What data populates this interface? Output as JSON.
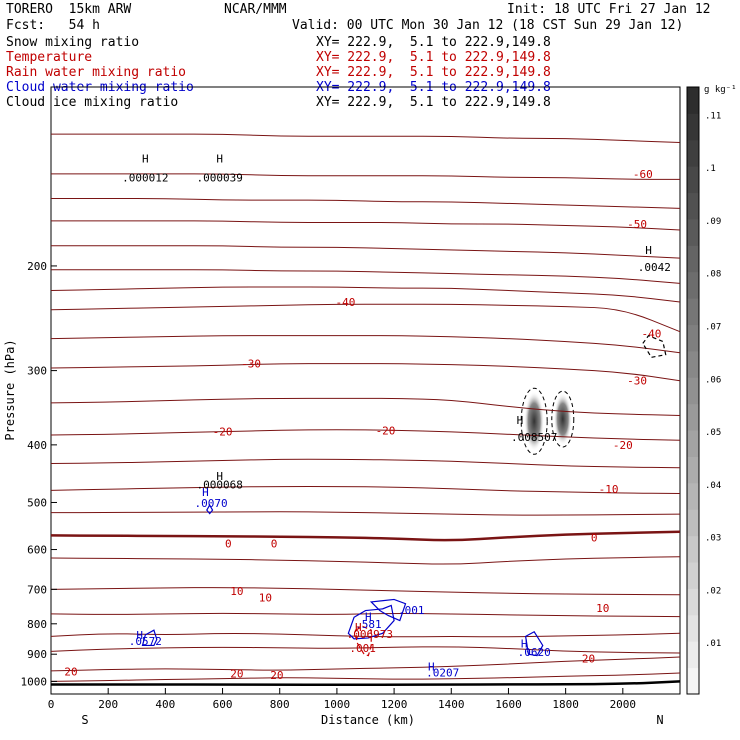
{
  "header": {
    "model": "TORERO  15km ARW",
    "org": "NCAR/MMM",
    "init": "Init: 18 UTC Fri 27 Jan 12",
    "fcst": "Fcst:   54 h",
    "valid": "Valid: 00 UTC Mon 30 Jan 12 (18 CST Sun 29 Jan 12)",
    "fields": [
      {
        "name": "Snow mixing ratio",
        "xy": "XY= 222.9,  5.1 to 222.9,149.8",
        "color": "#000000"
      },
      {
        "name": "Temperature",
        "xy": "XY= 222.9,  5.1 to 222.9,149.8",
        "color": "#c00000"
      },
      {
        "name": "Rain water mixing ratio",
        "xy": "XY= 222.9,  5.1 to 222.9,149.8",
        "color": "#c00000"
      },
      {
        "name": "Cloud water mixing ratio",
        "xy": "XY= 222.9,  5.1 to 222.9,149.8",
        "color": "#0000cc"
      },
      {
        "name": "Cloud ice mixing ratio",
        "xy": "XY= 222.9,  5.1 to 222.9,149.8",
        "color": "#000000"
      }
    ]
  },
  "chart_data": {
    "type": "contour",
    "xlabel": "Distance (km)",
    "ylabel": "Pressure (hPa)",
    "x_ticks": [
      "0",
      "200",
      "400",
      "600",
      "800",
      "1000",
      "1200",
      "1400",
      "1600",
      "1800",
      "2000"
    ],
    "y_ticks": [
      "200",
      "300",
      "400",
      "500",
      "600",
      "700",
      "800",
      "900",
      "1000"
    ],
    "xlim": [
      0,
      2200
    ],
    "ylim": [
      1050,
      100
    ],
    "y_scale": "log",
    "end_labels": {
      "left": "S",
      "right": "N"
    },
    "colorbar": {
      "unit": "g kg⁻¹",
      "ticks": [
        ".01",
        ".02",
        ".03",
        ".04",
        ".05",
        ".06",
        ".07",
        ".08",
        ".09",
        ".1",
        ".11"
      ]
    },
    "temperature_contours": [
      {
        "label": "-60",
        "p": [
          140,
          140,
          140,
          140,
          141,
          141,
          141,
          141,
          142,
          142,
          143,
          143
        ]
      },
      {
        "label": "-50",
        "p": [
          168,
          168,
          168,
          168,
          169,
          169,
          169,
          170,
          170,
          171,
          172,
          174
        ]
      },
      {
        "label": "-40",
        "p": [
          237,
          236,
          235,
          234,
          233,
          232,
          232,
          232,
          233,
          234,
          236,
          258
        ]
      },
      {
        "label": "-30",
        "p": [
          297,
          296,
          295,
          294,
          292,
          292,
          292,
          293,
          295,
          298,
          302,
          312
        ]
      },
      {
        "label": "-20",
        "p": [
          385,
          384,
          382,
          380,
          378,
          377,
          378,
          380,
          384,
          388,
          391,
          393
        ]
      },
      {
        "label": "-10",
        "p": [
          477,
          475,
          473,
          471,
          470,
          470,
          471,
          474,
          478,
          480,
          482,
          483
        ]
      },
      {
        "label": "0",
        "p": [
          568,
          569,
          569,
          570,
          571,
          572,
          575,
          580,
          572,
          566,
          563,
          560
        ]
      },
      {
        "label": "10",
        "p": [
          700,
          698,
          696,
          695,
          697,
          700,
          704,
          708,
          711,
          713,
          714,
          715
        ]
      },
      {
        "label": "20",
        "p": [
          960,
          955,
          952,
          955,
          958,
          953,
          949,
          944,
          935,
          925,
          918,
          910
        ]
      }
    ],
    "contour_x": [
      0,
      200,
      400,
      600,
      800,
      1000,
      1200,
      1400,
      1600,
      1800,
      2000,
      2200
    ],
    "labels": [
      {
        "text": "-60",
        "x": 2070,
        "p": 140,
        "color": "red"
      },
      {
        "text": "-50",
        "x": 2050,
        "p": 170,
        "color": "red"
      },
      {
        "text": "-40",
        "x": 1030,
        "p": 230,
        "color": "red"
      },
      {
        "text": "-40",
        "x": 2100,
        "p": 260,
        "color": "red"
      },
      {
        "text": "-30",
        "x": 700,
        "p": 292,
        "color": "red"
      },
      {
        "text": "-30",
        "x": 2050,
        "p": 312,
        "color": "red"
      },
      {
        "text": "-20",
        "x": 600,
        "p": 380,
        "color": "red"
      },
      {
        "text": "-20",
        "x": 1170,
        "p": 378,
        "color": "red"
      },
      {
        "text": "-20",
        "x": 2000,
        "p": 400,
        "color": "red"
      },
      {
        "text": "-10",
        "x": 1950,
        "p": 475,
        "color": "red"
      },
      {
        "text": "0",
        "x": 620,
        "p": 586,
        "color": "red"
      },
      {
        "text": "0",
        "x": 780,
        "p": 586,
        "color": "red"
      },
      {
        "text": "0",
        "x": 1900,
        "p": 573,
        "color": "red"
      },
      {
        "text": "10",
        "x": 650,
        "p": 705,
        "color": "red"
      },
      {
        "text": "10",
        "x": 750,
        "p": 722,
        "color": "red"
      },
      {
        "text": "10",
        "x": 1930,
        "p": 752,
        "color": "red"
      },
      {
        "text": "20",
        "x": 70,
        "p": 963,
        "color": "red"
      },
      {
        "text": "20",
        "x": 650,
        "p": 970,
        "color": "red"
      },
      {
        "text": "20",
        "x": 790,
        "p": 975,
        "color": "red"
      },
      {
        "text": "20",
        "x": 1880,
        "p": 915,
        "color": "red"
      },
      {
        "text": "H",
        "x": 330,
        "p": 132,
        "color": "black"
      },
      {
        "text": ".000012",
        "x": 330,
        "p": 142,
        "color": "black"
      },
      {
        "text": "H",
        "x": 590,
        "p": 132,
        "color": "black"
      },
      {
        "text": ".000039",
        "x": 590,
        "p": 142,
        "color": "black"
      },
      {
        "text": "H",
        "x": 590,
        "p": 451,
        "color": "black"
      },
      {
        "text": ".000068",
        "x": 590,
        "p": 466,
        "color": "black"
      },
      {
        "text": "H",
        "x": 1640,
        "p": 363,
        "color": "black"
      },
      {
        "text": ".008507",
        "x": 1690,
        "p": 388,
        "color": "black"
      },
      {
        "text": "H",
        "x": 2090,
        "p": 188,
        "color": "black"
      },
      {
        "text": ".0042",
        "x": 2110,
        "p": 201,
        "color": "black"
      },
      {
        "text": "H",
        "x": 540,
        "p": 480,
        "color": "blue"
      },
      {
        "text": ".0070",
        "x": 560,
        "p": 501,
        "color": "blue"
      },
      {
        "text": "H",
        "x": 310,
        "p": 836,
        "color": "blue"
      },
      {
        "text": ".0572",
        "x": 330,
        "p": 855,
        "color": "blue"
      },
      {
        "text": "H",
        "x": 1110,
        "p": 778,
        "color": "blue"
      },
      {
        "text": ".581",
        "x": 1110,
        "p": 800,
        "color": "blue"
      },
      {
        "text": ".001",
        "x": 1260,
        "p": 758,
        "color": "blue"
      },
      {
        "text": "H",
        "x": 1075,
        "p": 810,
        "color": "red"
      },
      {
        "text": ".006973",
        "x": 1115,
        "p": 832,
        "color": "red"
      },
      {
        "text": ".001",
        "x": 1090,
        "p": 878,
        "color": "red"
      },
      {
        "text": "H",
        "x": 1655,
        "p": 864,
        "color": "blue"
      },
      {
        "text": ".0620",
        "x": 1690,
        "p": 893,
        "color": "blue"
      },
      {
        "text": "H",
        "x": 1330,
        "p": 943,
        "color": "blue"
      },
      {
        "text": ".0207",
        "x": 1370,
        "p": 966,
        "color": "blue"
      }
    ],
    "surface_pressure": [
      1012,
      1012,
      1012,
      1012,
      1013,
      1013,
      1013,
      1012,
      1012,
      1011,
      1010,
      1000
    ]
  }
}
